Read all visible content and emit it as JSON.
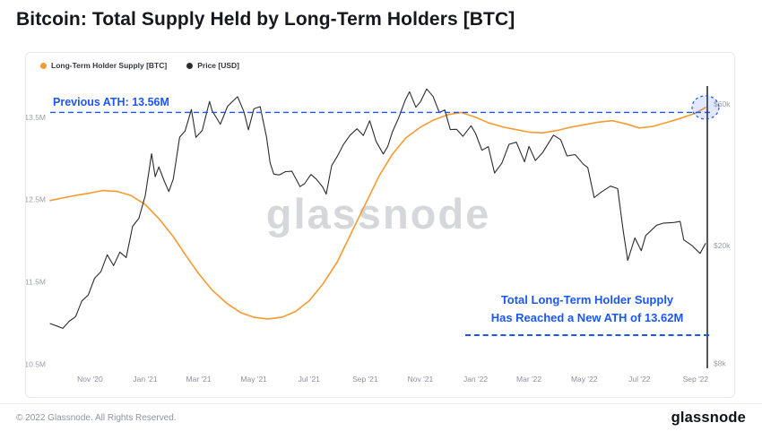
{
  "page": {
    "title": "Bitcoin: Total Supply Held by Long-Term Holders [BTC]",
    "watermark": "glassnode",
    "footer": {
      "copyright": "© 2022 Glassnode. All Rights Reserved.",
      "brand": "glassnode"
    }
  },
  "colors": {
    "accent_blue": "#1c57f5",
    "supply_orange": "#f79a2f",
    "price_dark": "#2b2c30"
  },
  "legend": [
    {
      "label": "Long-Term Holder Supply [BTC]",
      "color": "#f79a2f"
    },
    {
      "label": "Price [USD]",
      "color": "#2b2c30"
    }
  ],
  "annotations": {
    "prev_ath": {
      "label": "Previous ATH: 13.56M",
      "value_m": 13.56
    },
    "new_ath": {
      "line1": "Total Long-Term Holder Supply",
      "line2": "Has Reached a New ATH of 13.62M",
      "value_m": 13.62
    }
  },
  "chart_data": {
    "type": "line",
    "title": "Bitcoin: Total Supply Held by Long-Term Holders [BTC]",
    "x_domain": [
      "2020-09-18",
      "2022-09-14"
    ],
    "x_ticks": [
      {
        "label": "Nov '20",
        "date": "2020-11-01"
      },
      {
        "label": "Jan '21",
        "date": "2021-01-01"
      },
      {
        "label": "Mar '21",
        "date": "2021-03-01"
      },
      {
        "label": "May '21",
        "date": "2021-05-01"
      },
      {
        "label": "Jul '21",
        "date": "2021-07-01"
      },
      {
        "label": "Sep '21",
        "date": "2021-09-01"
      },
      {
        "label": "Nov '21",
        "date": "2021-11-01"
      },
      {
        "label": "Jan '22",
        "date": "2022-01-01"
      },
      {
        "label": "Mar '22",
        "date": "2022-03-01"
      },
      {
        "label": "May '22",
        "date": "2022-05-01"
      },
      {
        "label": "Jul '22",
        "date": "2022-07-01"
      },
      {
        "label": "Sep '22",
        "date": "2022-09-01"
      }
    ],
    "left_axis": {
      "unit": "Million BTC",
      "scale": "linear",
      "domain": [
        10.45,
        13.88
      ],
      "ticks": [
        {
          "label": "13.5M",
          "value": 13.5
        },
        {
          "label": "12.5M",
          "value": 12.5
        },
        {
          "label": "11.5M",
          "value": 11.5
        },
        {
          "label": "10.5M",
          "value": 10.5
        }
      ]
    },
    "right_axis": {
      "unit": "USD (thousands)",
      "scale": "log",
      "domain": [
        7.7,
        69
      ],
      "ticks": [
        {
          "label": "$60k",
          "value": 60
        },
        {
          "label": "$20k",
          "value": 20
        },
        {
          "label": "$8k",
          "value": 8
        }
      ]
    },
    "series": [
      {
        "name": "Long-Term Holder Supply [BTC]",
        "axis": "left",
        "color": "#f79a2f",
        "points": [
          [
            "2020-09-18",
            12.49
          ],
          [
            "2020-10-02",
            12.52
          ],
          [
            "2020-10-16",
            12.55
          ],
          [
            "2020-11-01",
            12.58
          ],
          [
            "2020-11-15",
            12.61
          ],
          [
            "2020-12-01",
            12.6
          ],
          [
            "2020-12-16",
            12.55
          ],
          [
            "2021-01-01",
            12.44
          ],
          [
            "2021-01-16",
            12.27
          ],
          [
            "2021-02-01",
            12.05
          ],
          [
            "2021-02-15",
            11.82
          ],
          [
            "2021-03-01",
            11.6
          ],
          [
            "2021-03-16",
            11.4
          ],
          [
            "2021-04-01",
            11.24
          ],
          [
            "2021-04-16",
            11.13
          ],
          [
            "2021-05-01",
            11.07
          ],
          [
            "2021-05-16",
            11.05
          ],
          [
            "2021-06-01",
            11.07
          ],
          [
            "2021-06-16",
            11.14
          ],
          [
            "2021-07-01",
            11.27
          ],
          [
            "2021-07-16",
            11.47
          ],
          [
            "2021-08-01",
            11.74
          ],
          [
            "2021-08-16",
            12.08
          ],
          [
            "2021-09-01",
            12.44
          ],
          [
            "2021-09-16",
            12.78
          ],
          [
            "2021-10-01",
            13.05
          ],
          [
            "2021-10-16",
            13.25
          ],
          [
            "2021-11-01",
            13.38
          ],
          [
            "2021-11-16",
            13.47
          ],
          [
            "2021-12-01",
            13.53
          ],
          [
            "2021-12-16",
            13.56
          ],
          [
            "2022-01-01",
            13.5
          ],
          [
            "2022-01-16",
            13.43
          ],
          [
            "2022-02-01",
            13.38
          ],
          [
            "2022-02-15",
            13.35
          ],
          [
            "2022-03-01",
            13.32
          ],
          [
            "2022-03-16",
            13.31
          ],
          [
            "2022-04-01",
            13.34
          ],
          [
            "2022-04-16",
            13.38
          ],
          [
            "2022-05-01",
            13.41
          ],
          [
            "2022-05-16",
            13.44
          ],
          [
            "2022-06-01",
            13.46
          ],
          [
            "2022-06-16",
            13.42
          ],
          [
            "2022-07-01",
            13.37
          ],
          [
            "2022-07-16",
            13.39
          ],
          [
            "2022-08-01",
            13.44
          ],
          [
            "2022-08-16",
            13.49
          ],
          [
            "2022-09-01",
            13.55
          ],
          [
            "2022-09-12",
            13.62
          ]
        ]
      },
      {
        "name": "Price [USD]",
        "axis": "right",
        "color": "#2b2c30",
        "points": [
          [
            "2020-09-18",
            10.9
          ],
          [
            "2020-09-25",
            10.7
          ],
          [
            "2020-10-02",
            10.5
          ],
          [
            "2020-10-09",
            11.1
          ],
          [
            "2020-10-16",
            11.5
          ],
          [
            "2020-10-23",
            13.0
          ],
          [
            "2020-10-30",
            13.6
          ],
          [
            "2020-11-06",
            15.5
          ],
          [
            "2020-11-13",
            16.3
          ],
          [
            "2020-11-20",
            18.6
          ],
          [
            "2020-11-27",
            17.1
          ],
          [
            "2020-12-04",
            19.0
          ],
          [
            "2020-12-11",
            18.2
          ],
          [
            "2020-12-18",
            23.2
          ],
          [
            "2020-12-25",
            24.7
          ],
          [
            "2021-01-01",
            29.4
          ],
          [
            "2021-01-08",
            40.8
          ],
          [
            "2021-01-12",
            34.1
          ],
          [
            "2021-01-16",
            36.8
          ],
          [
            "2021-01-22",
            33.0
          ],
          [
            "2021-01-27",
            30.4
          ],
          [
            "2021-02-01",
            33.5
          ],
          [
            "2021-02-08",
            46.4
          ],
          [
            "2021-02-14",
            48.6
          ],
          [
            "2021-02-21",
            57.5
          ],
          [
            "2021-02-26",
            46.3
          ],
          [
            "2021-03-05",
            48.9
          ],
          [
            "2021-03-13",
            61.2
          ],
          [
            "2021-03-16",
            56.9
          ],
          [
            "2021-03-25",
            51.3
          ],
          [
            "2021-04-02",
            59.0
          ],
          [
            "2021-04-13",
            63.5
          ],
          [
            "2021-04-20",
            56.5
          ],
          [
            "2021-04-25",
            49.1
          ],
          [
            "2021-05-01",
            57.8
          ],
          [
            "2021-05-08",
            58.8
          ],
          [
            "2021-05-15",
            46.4
          ],
          [
            "2021-05-19",
            38.0
          ],
          [
            "2021-05-23",
            34.8
          ],
          [
            "2021-05-29",
            34.6
          ],
          [
            "2021-06-05",
            35.5
          ],
          [
            "2021-06-12",
            35.6
          ],
          [
            "2021-06-21",
            31.6
          ],
          [
            "2021-06-26",
            32.3
          ],
          [
            "2021-07-03",
            34.7
          ],
          [
            "2021-07-09",
            33.5
          ],
          [
            "2021-07-16",
            31.5
          ],
          [
            "2021-07-20",
            29.8
          ],
          [
            "2021-07-26",
            37.2
          ],
          [
            "2021-08-01",
            39.9
          ],
          [
            "2021-08-08",
            43.8
          ],
          [
            "2021-08-15",
            47.0
          ],
          [
            "2021-08-23",
            49.5
          ],
          [
            "2021-08-30",
            47.0
          ],
          [
            "2021-09-06",
            52.7
          ],
          [
            "2021-09-13",
            44.9
          ],
          [
            "2021-09-21",
            40.7
          ],
          [
            "2021-09-26",
            43.2
          ],
          [
            "2021-10-01",
            48.2
          ],
          [
            "2021-10-08",
            53.9
          ],
          [
            "2021-10-15",
            61.6
          ],
          [
            "2021-10-20",
            66.0
          ],
          [
            "2021-10-27",
            58.5
          ],
          [
            "2021-11-01",
            61.0
          ],
          [
            "2021-11-08",
            67.5
          ],
          [
            "2021-11-15",
            63.6
          ],
          [
            "2021-11-22",
            56.2
          ],
          [
            "2021-11-28",
            57.3
          ],
          [
            "2021-12-04",
            49.2
          ],
          [
            "2021-12-11",
            49.3
          ],
          [
            "2021-12-18",
            46.7
          ],
          [
            "2021-12-27",
            50.7
          ],
          [
            "2022-01-01",
            47.7
          ],
          [
            "2022-01-08",
            41.9
          ],
          [
            "2022-01-15",
            43.1
          ],
          [
            "2022-01-22",
            35.1
          ],
          [
            "2022-01-30",
            37.9
          ],
          [
            "2022-02-07",
            43.9
          ],
          [
            "2022-02-15",
            44.6
          ],
          [
            "2022-02-24",
            38.3
          ],
          [
            "2022-03-01",
            43.2
          ],
          [
            "2022-03-08",
            38.7
          ],
          [
            "2022-03-16",
            41.1
          ],
          [
            "2022-03-28",
            47.1
          ],
          [
            "2022-04-05",
            45.5
          ],
          [
            "2022-04-12",
            40.1
          ],
          [
            "2022-04-21",
            40.5
          ],
          [
            "2022-04-30",
            37.6
          ],
          [
            "2022-05-05",
            36.6
          ],
          [
            "2022-05-12",
            29.0
          ],
          [
            "2022-05-20",
            30.3
          ],
          [
            "2022-05-30",
            31.7
          ],
          [
            "2022-06-07",
            31.1
          ],
          [
            "2022-06-13",
            22.5
          ],
          [
            "2022-06-18",
            17.8
          ],
          [
            "2022-06-26",
            21.2
          ],
          [
            "2022-07-03",
            19.2
          ],
          [
            "2022-07-08",
            21.6
          ],
          [
            "2022-07-20",
            23.4
          ],
          [
            "2022-07-28",
            23.8
          ],
          [
            "2022-08-08",
            23.9
          ],
          [
            "2022-08-15",
            24.1
          ],
          [
            "2022-08-19",
            20.9
          ],
          [
            "2022-08-28",
            20.0
          ],
          [
            "2022-09-06",
            18.8
          ],
          [
            "2022-09-12",
            20.3
          ]
        ]
      }
    ],
    "grid": false,
    "legend_position": "top-left"
  }
}
